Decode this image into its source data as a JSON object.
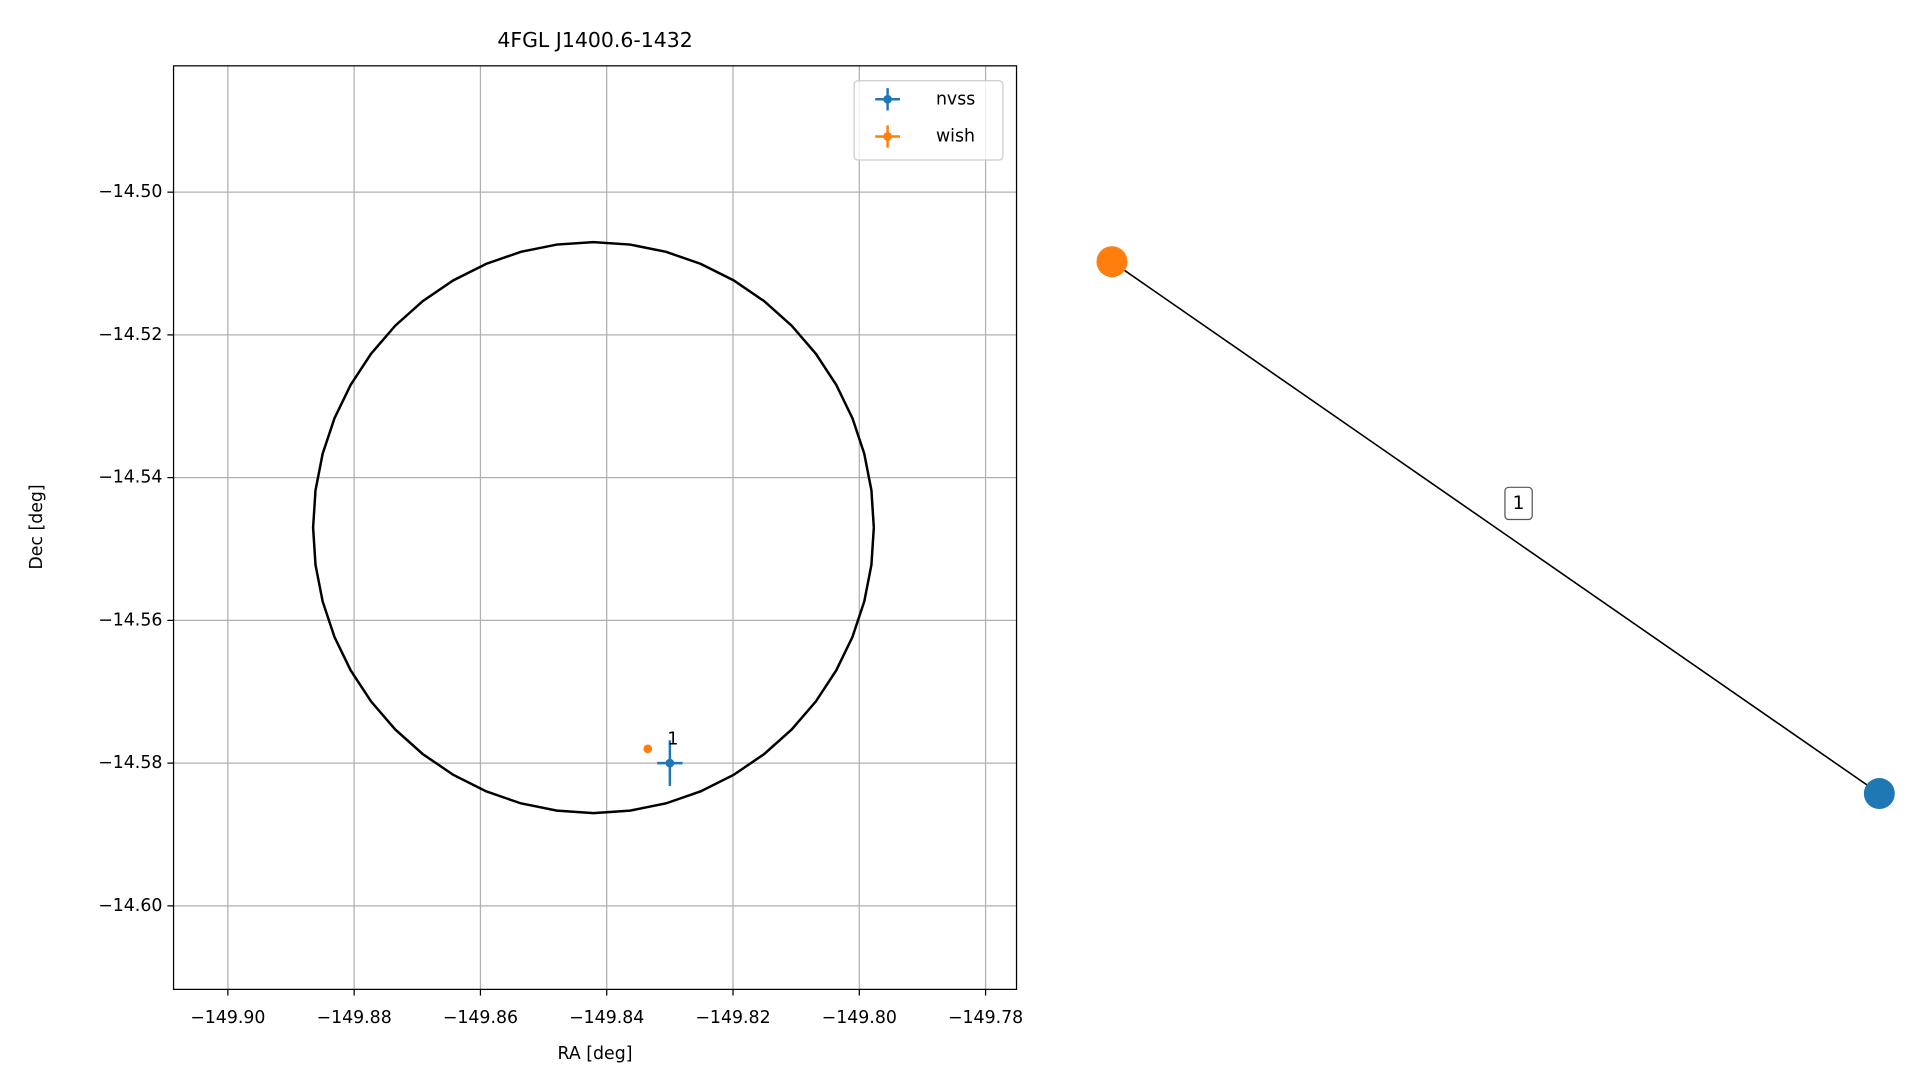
{
  "chart_data": {
    "type": "scatter",
    "title": "4FGL J1400.6-1432",
    "xlabel": "RA [deg]",
    "ylabel": "Dec [deg]",
    "xlim": [
      -149.9086,
      -149.7751
    ],
    "ylim": [
      -14.6117,
      -14.4823
    ],
    "xticks": [
      {
        "value": -149.9,
        "label": "−149.90"
      },
      {
        "value": -149.88,
        "label": "−149.88"
      },
      {
        "value": -149.86,
        "label": "−149.86"
      },
      {
        "value": -149.84,
        "label": "−149.84"
      },
      {
        "value": -149.82,
        "label": "−149.82"
      },
      {
        "value": -149.8,
        "label": "−149.80"
      },
      {
        "value": -149.78,
        "label": "−149.78"
      }
    ],
    "yticks": [
      {
        "value": -14.5,
        "label": "−14.50"
      },
      {
        "value": -14.52,
        "label": "−14.52"
      },
      {
        "value": -14.54,
        "label": "−14.54"
      },
      {
        "value": -14.56,
        "label": "−14.56"
      },
      {
        "value": -14.58,
        "label": "−14.58"
      },
      {
        "value": -14.6,
        "label": "−14.60"
      }
    ],
    "grid": true,
    "legend": "upper right",
    "series": [
      {
        "name": "nvss",
        "color": "#1f77b4",
        "x": [
          -149.83
        ],
        "values": [
          -14.58
        ],
        "xerr": [
          0.002
        ],
        "yerr": [
          0.0032
        ],
        "labels": [
          "1"
        ]
      },
      {
        "name": "wish",
        "color": "#ff7f0e",
        "x": [
          -149.8335
        ],
        "values": [
          -14.578
        ]
      }
    ],
    "ellipse": {
      "center": [
        -149.8421,
        -14.547
      ],
      "width": 0.0888,
      "height": 0.08,
      "color": "#000000"
    }
  },
  "graph": {
    "nodes": [
      {
        "color": "#ff7f0e"
      },
      {
        "color": "#1f77b4"
      }
    ],
    "edges": [
      {
        "label": "1"
      }
    ]
  }
}
